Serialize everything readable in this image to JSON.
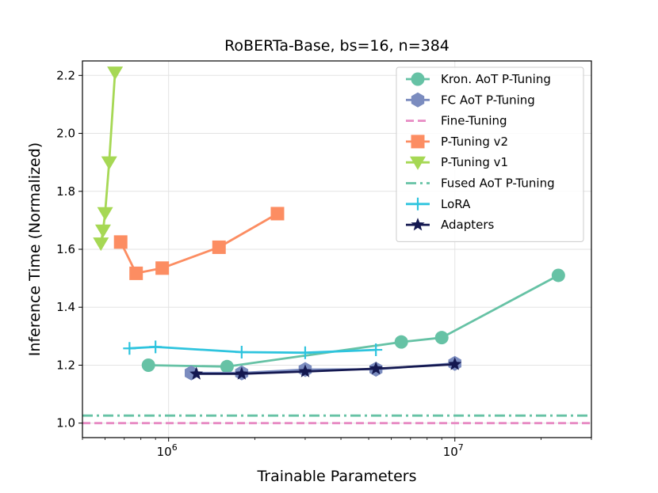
{
  "chart_data": {
    "type": "line",
    "title": "RoBERTa-Base, bs=16, n=384",
    "xlabel": "Trainable Parameters",
    "ylabel": "Inference Time (Normalized)",
    "xscale": "log",
    "xlim": [
      500000,
      30000000
    ],
    "ylim": [
      0.95,
      2.25
    ],
    "x_tick_labels": [
      {
        "base": "10",
        "exp": "6",
        "value": 1000000
      },
      {
        "base": "10",
        "exp": "7",
        "value": 10000000
      }
    ],
    "y_ticks": [
      1.0,
      1.2,
      1.4,
      1.6,
      1.8,
      2.0,
      2.2
    ],
    "y_tick_labels": [
      "1.0",
      "1.2",
      "1.4",
      "1.6",
      "1.8",
      "2.0",
      "2.2"
    ],
    "grid": true,
    "legend_position": "top-right",
    "series": [
      {
        "name": "Kron. AoT P-Tuning",
        "color": "#66c2a5",
        "marker": "circle",
        "linestyle": "solid",
        "x": [
          850000,
          1600000,
          6500000,
          9000000,
          23000000
        ],
        "y": [
          1.2,
          1.195,
          1.28,
          1.295,
          1.51
        ]
      },
      {
        "name": "FC AoT P-Tuning",
        "color": "#7b8cbf",
        "marker": "hexagon",
        "linestyle": "solid",
        "x": [
          1200000,
          1800000,
          3000000,
          5300000,
          10000000
        ],
        "y": [
          1.173,
          1.173,
          1.185,
          1.186,
          1.206
        ]
      },
      {
        "name": "Fine-Tuning",
        "color": "#e78ac3",
        "marker": "none",
        "linestyle": "dashed",
        "y_const": 1.0
      },
      {
        "name": "P-Tuning v2",
        "color": "#fc8d62",
        "marker": "square",
        "linestyle": "solid",
        "x": [
          680000,
          770000,
          950000,
          1500000,
          2400000
        ],
        "y": [
          1.625,
          1.517,
          1.535,
          1.607,
          1.723
        ]
      },
      {
        "name": "P-Tuning v1",
        "color": "#a6d854",
        "marker": "triangle-down",
        "linestyle": "solid",
        "x": [
          580000,
          590000,
          600000,
          620000,
          650000
        ],
        "y": [
          1.62,
          1.665,
          1.725,
          1.9,
          2.21
        ]
      },
      {
        "name": "Fused AoT P-Tuning",
        "color": "#66c2a5",
        "marker": "none",
        "linestyle": "dashdot",
        "y_const": 1.026
      },
      {
        "name": "LoRA",
        "color": "#2ec4de",
        "marker": "plus",
        "linestyle": "solid",
        "x": [
          730000,
          900000,
          1800000,
          3000000,
          5300000
        ],
        "y": [
          1.258,
          1.263,
          1.245,
          1.243,
          1.253
        ]
      },
      {
        "name": "Adapters",
        "color": "#141850",
        "marker": "star",
        "linestyle": "solid",
        "x": [
          1250000,
          1800000,
          3000000,
          5300000,
          10000000
        ],
        "y": [
          1.17,
          1.17,
          1.178,
          1.188,
          1.203
        ]
      }
    ]
  }
}
